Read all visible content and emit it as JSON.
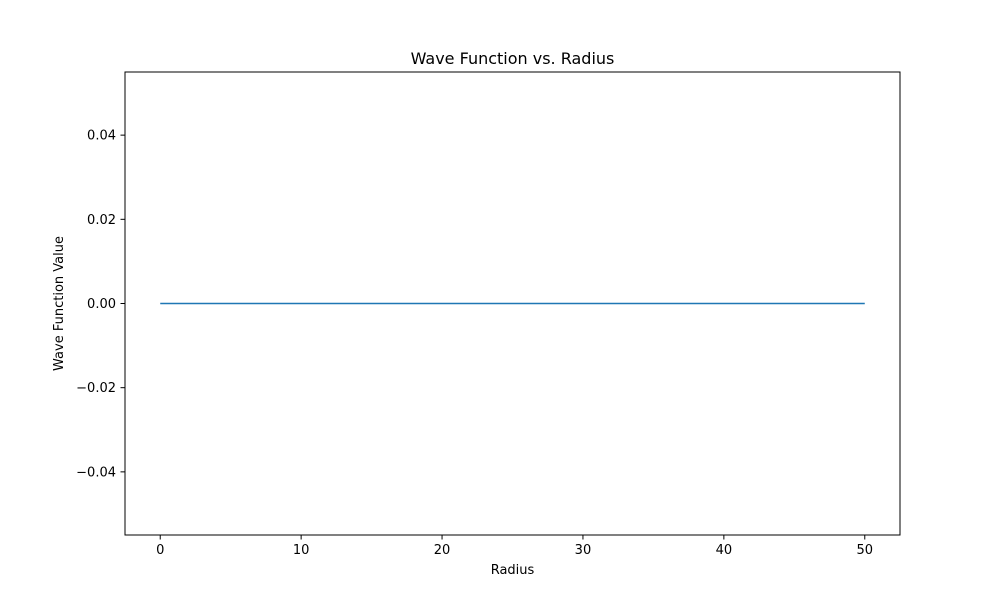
{
  "chart_data": {
    "type": "line",
    "title": "Wave Function vs. Radius",
    "xlabel": "Radius",
    "ylabel": "Wave Function Value",
    "xlim": [
      -2.5,
      52.5
    ],
    "ylim": [
      -0.055,
      0.055
    ],
    "xticks": [
      0,
      10,
      20,
      30,
      40,
      50
    ],
    "xtick_labels": [
      "0",
      "10",
      "20",
      "30",
      "40",
      "50"
    ],
    "yticks": [
      -0.04,
      -0.02,
      0.0,
      0.02,
      0.04
    ],
    "ytick_labels": [
      "−0.04",
      "−0.02",
      "0.00",
      "0.02",
      "0.04"
    ],
    "grid": false,
    "series": [
      {
        "color": "#1f77b4",
        "x": [
          0,
          50
        ],
        "y": [
          0.0,
          0.0
        ]
      }
    ]
  }
}
